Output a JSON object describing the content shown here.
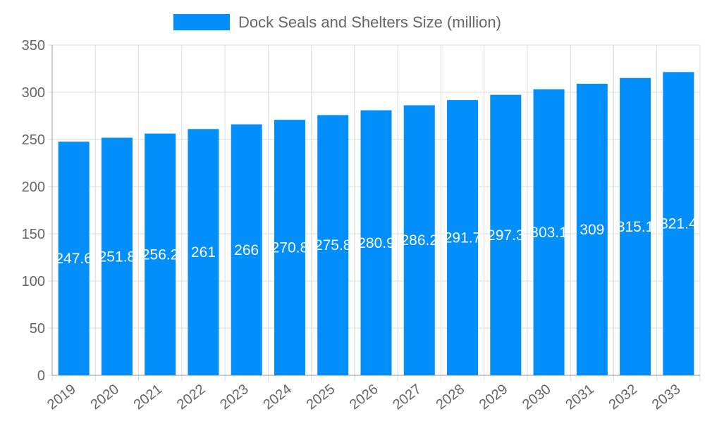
{
  "chart_data": {
    "type": "bar",
    "title": "",
    "xlabel": "",
    "ylabel": "",
    "legend": {
      "position": "top",
      "entries": [
        "Dock Seals and Shelters Size (million)"
      ]
    },
    "categories": [
      "2019",
      "2020",
      "2021",
      "2022",
      "2023",
      "2024",
      "2025",
      "2026",
      "2027",
      "2028",
      "2029",
      "2030",
      "2031",
      "2032",
      "2033"
    ],
    "series": [
      {
        "name": "Dock Seals and Shelters Size (million)",
        "values": [
          247.6,
          251.8,
          256.2,
          261,
          266,
          270.8,
          275.8,
          280.9,
          286.2,
          291.7,
          297.3,
          303.1,
          309,
          315.1,
          321.4
        ],
        "color": "#038ffb"
      }
    ],
    "ylim": [
      0,
      350
    ],
    "yticks": [
      0,
      50,
      100,
      150,
      200,
      250,
      300,
      350
    ],
    "grid": true,
    "data_labels": true
  }
}
